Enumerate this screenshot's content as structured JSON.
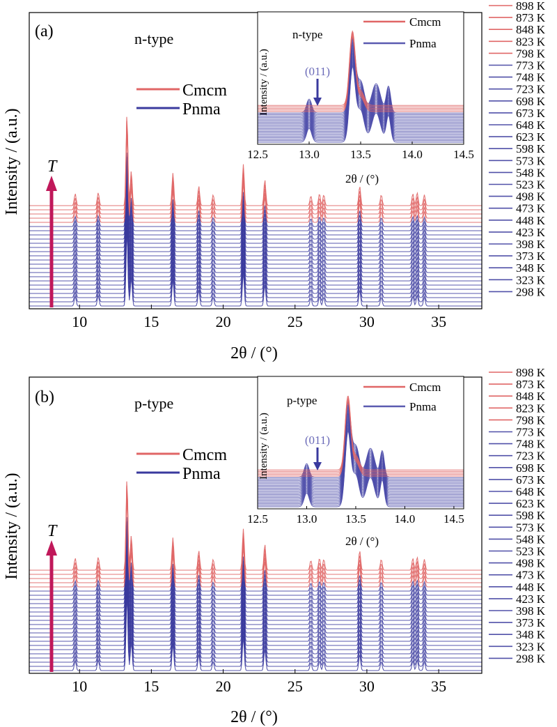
{
  "temperatures": [
    "898 K",
    "873 K",
    "848 K",
    "823 K",
    "798 K",
    "773 K",
    "748 K",
    "723 K",
    "698 K",
    "673 K",
    "648 K",
    "623 K",
    "598 K",
    "573 K",
    "548 K",
    "523 K",
    "498 K",
    "473 K",
    "448 K",
    "423 K",
    "398 K",
    "373 K",
    "348 K",
    "323 K",
    "298 K"
  ],
  "colors": {
    "cmcm": "#e06666",
    "pnma": "#3a3a9e",
    "arrow": "#c0185a",
    "label011": "#6a6ab8"
  },
  "chart_data": [
    {
      "type": "line",
      "panel_label": "(a)",
      "material_label": "n-type",
      "xlabel": "2θ / (°)",
      "ylabel": "Intensity / (a.u.)",
      "xlim": [
        6.5,
        38
      ],
      "x_ticks": [
        "10",
        "15",
        "20",
        "25",
        "30",
        "35"
      ],
      "arrow_label": "T",
      "legend": [
        {
          "name": "Cmcm",
          "color": "#e06666"
        },
        {
          "name": "Pnma",
          "color": "#3a3a9e"
        }
      ],
      "phase_by_temperature": [
        "Cmcm",
        "Cmcm",
        "Cmcm",
        "Cmcm",
        "Cmcm",
        "Pnma",
        "Pnma",
        "Pnma",
        "Pnma",
        "Pnma",
        "Pnma",
        "Pnma",
        "Pnma",
        "Pnma",
        "Pnma",
        "Pnma",
        "Pnma",
        "Pnma",
        "Pnma",
        "Pnma",
        "Pnma",
        "Pnma",
        "Pnma",
        "Pnma",
        "Pnma"
      ],
      "peaks_2theta": [
        9.7,
        11.3,
        13.3,
        13.6,
        16.5,
        18.3,
        19.3,
        21.4,
        22.9,
        26.1,
        26.7,
        27.0,
        29.5,
        31.0,
        33.2,
        33.5,
        34.0
      ],
      "inset": {
        "material_label": "n-type",
        "xlabel": "2θ / (°)",
        "ylabel": "Intensity / (a.u.)",
        "xlim": [
          12.5,
          14.5
        ],
        "x_ticks": [
          "12.5",
          "13.0",
          "13.5",
          "14.0",
          "14.5"
        ],
        "legend": [
          {
            "name": "Cmcm",
            "color": "#e06666"
          },
          {
            "name": "Pnma",
            "color": "#3a3a9e"
          }
        ],
        "annotation": "(011)",
        "annotation_x": 13.0,
        "peaks_2theta": [
          13.0,
          13.42,
          13.65,
          13.78
        ]
      }
    },
    {
      "type": "line",
      "panel_label": "(b)",
      "material_label": "p-type",
      "xlabel": "2θ / (°)",
      "ylabel": "Intensity / (a.u.)",
      "xlim": [
        6.5,
        38
      ],
      "x_ticks": [
        "10",
        "15",
        "20",
        "25",
        "30",
        "35"
      ],
      "arrow_label": "T",
      "legend": [
        {
          "name": "Cmcm",
          "color": "#e06666"
        },
        {
          "name": "Pnma",
          "color": "#3a3a9e"
        }
      ],
      "phase_by_temperature": [
        "Cmcm",
        "Cmcm",
        "Cmcm",
        "Cmcm",
        "Cmcm",
        "Pnma",
        "Pnma",
        "Pnma",
        "Pnma",
        "Pnma",
        "Pnma",
        "Pnma",
        "Pnma",
        "Pnma",
        "Pnma",
        "Pnma",
        "Pnma",
        "Pnma",
        "Pnma",
        "Pnma",
        "Pnma",
        "Pnma",
        "Pnma",
        "Pnma",
        "Pnma"
      ],
      "peaks_2theta": [
        9.7,
        11.3,
        13.3,
        13.6,
        16.5,
        18.3,
        19.3,
        21.4,
        22.9,
        26.1,
        26.7,
        27.0,
        29.5,
        31.0,
        33.2,
        33.5,
        34.0
      ],
      "inset": {
        "material_label": "p-type",
        "xlabel": "2θ / (°)",
        "ylabel": "Intensity / (a.u.)",
        "xlim": [
          12.5,
          14.6
        ],
        "x_ticks": [
          "12.5",
          "13.0",
          "13.5",
          "14.0",
          "14.5"
        ],
        "legend": [
          {
            "name": "Cmcm",
            "color": "#e06666"
          },
          {
            "name": "Pnma",
            "color": "#3a3a9e"
          }
        ],
        "annotation": "(011)",
        "annotation_x": 13.0,
        "peaks_2theta": [
          13.0,
          13.42,
          13.65,
          13.78
        ]
      }
    }
  ]
}
